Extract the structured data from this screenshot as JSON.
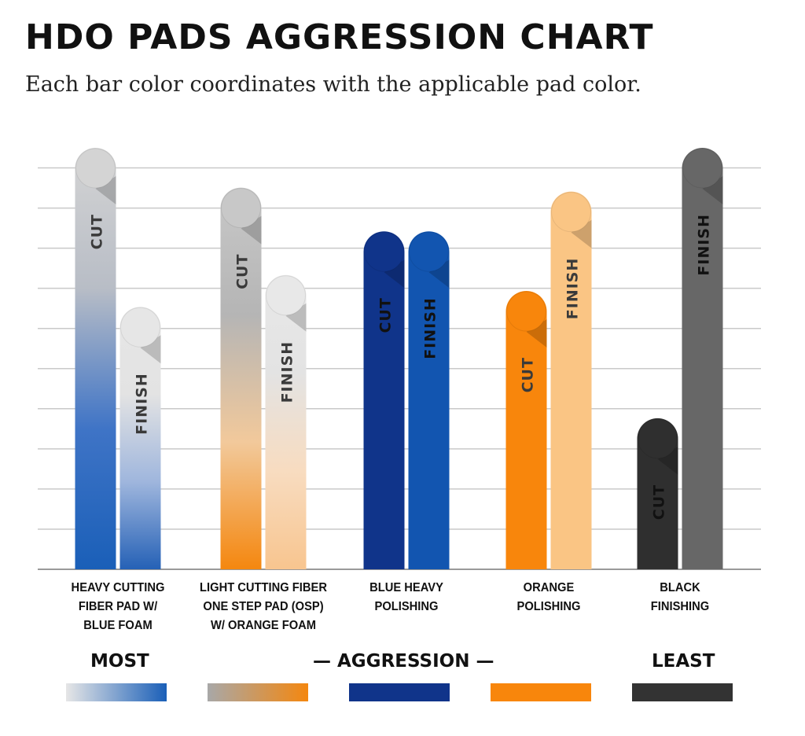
{
  "title": "HDO PADS AGGRESSION CHART",
  "subtitle": "Each bar color coordinates with the applicable pad color.",
  "chart_data": {
    "type": "bar",
    "title": "HDO PADS AGGRESSION CHART",
    "subtitle": "Each bar color coordinates with the applicable pad color.",
    "categories": [
      "HEAVY CUTTING\nFIBER PAD W/\nBLUE FOAM",
      "LIGHT CUTTING FIBER\nONE STEP PAD (OSP)\nW/ ORANGE FOAM",
      "BLUE HEAVY\nPOLISHING",
      "ORANGE\nPOLISHING",
      "BLACK\nFINISHING"
    ],
    "series": [
      {
        "name": "CUT",
        "values": [
          10.6,
          9.6,
          8.5,
          7.0,
          3.8
        ]
      },
      {
        "name": "FINISH",
        "values": [
          6.6,
          7.4,
          8.5,
          9.5,
          10.6
        ]
      }
    ],
    "bar_label_cut": "CUT",
    "bar_label_finish": "FINISH",
    "ylim": [
      0,
      11
    ],
    "grid": true,
    "xlabel": "",
    "ylabel": "",
    "bar_colors": [
      {
        "cut": [
          "#d4d4d4",
          "#b8bdc6",
          "#3f74c6",
          "#1a5fb8"
        ],
        "finish": [
          "#e6e6e6",
          "#e3e3e3",
          "#9fb6dd",
          "#2561b6"
        ]
      },
      {
        "cut": [
          "#c8c8c8",
          "#b5b5b5",
          "#f2c99b",
          "#f4870f"
        ],
        "finish": [
          "#e8e8e8",
          "#e3e3e3",
          "#f8dcc0",
          "#f8c58f"
        ]
      },
      {
        "cut": [
          "#10348a",
          "#10348a",
          "#10348a",
          "#10348a"
        ],
        "finish": [
          "#1255b0",
          "#1255b0",
          "#1255b0",
          "#1255b0"
        ]
      },
      {
        "cut": [
          "#f8860c",
          "#f8860c",
          "#f8860c",
          "#f8860c"
        ],
        "finish": [
          "#fac584",
          "#fac584",
          "#fac584",
          "#fac584"
        ]
      },
      {
        "cut": [
          "#2f2f2f",
          "#2f2f2f",
          "#2f2f2f",
          "#2f2f2f"
        ],
        "finish": [
          "#676767",
          "#676767",
          "#676767",
          "#676767"
        ]
      }
    ]
  },
  "aggression_scale": {
    "most": "MOST",
    "center": "— AGGRESSION —",
    "least": "LEAST",
    "swatches": [
      {
        "from": "#e6e6e6",
        "to": "#1a5fb8"
      },
      {
        "from": "#a8a8a8",
        "to": "#f4870f"
      },
      {
        "from": "#10348a",
        "to": "#10348a"
      },
      {
        "from": "#f8860c",
        "to": "#f8860c"
      },
      {
        "from": "#333333",
        "to": "#333333"
      }
    ]
  }
}
